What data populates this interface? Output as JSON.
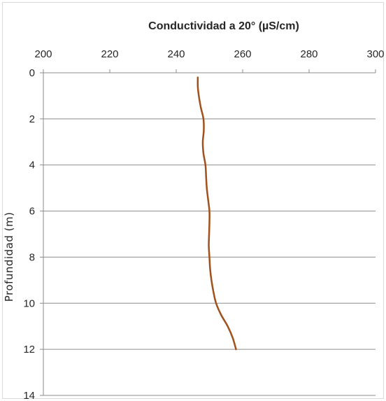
{
  "chart_data": {
    "type": "line",
    "title": "Conductividad a 20° (µS/cm)",
    "xlabel": "Conductividad a 20° (µS/cm)",
    "ylabel": "Profundidad (m)",
    "x_axis_position": "top",
    "y_axis_inverted": true,
    "xlim": [
      200,
      300
    ],
    "ylim": [
      0,
      14
    ],
    "x_ticks": [
      200,
      220,
      240,
      260,
      280,
      300
    ],
    "y_ticks": [
      0,
      2,
      4,
      6,
      8,
      10,
      12,
      14
    ],
    "grid": "horizontal",
    "legend": "none",
    "series": [
      {
        "color": "#a0521d",
        "points": [
          {
            "x": 246.5,
            "y": 0.2
          },
          {
            "x": 246.5,
            "y": 0.6
          },
          {
            "x": 246.8,
            "y": 1.0
          },
          {
            "x": 247.4,
            "y": 1.5
          },
          {
            "x": 248.2,
            "y": 2.0
          },
          {
            "x": 248.3,
            "y": 2.5
          },
          {
            "x": 248.0,
            "y": 3.0
          },
          {
            "x": 248.2,
            "y": 3.5
          },
          {
            "x": 248.8,
            "y": 4.0
          },
          {
            "x": 249.0,
            "y": 4.5
          },
          {
            "x": 249.2,
            "y": 5.0
          },
          {
            "x": 249.6,
            "y": 5.5
          },
          {
            "x": 250.0,
            "y": 6.0
          },
          {
            "x": 250.0,
            "y": 6.5
          },
          {
            "x": 249.9,
            "y": 7.0
          },
          {
            "x": 249.8,
            "y": 7.5
          },
          {
            "x": 250.0,
            "y": 8.0
          },
          {
            "x": 250.2,
            "y": 8.5
          },
          {
            "x": 250.6,
            "y": 9.0
          },
          {
            "x": 251.2,
            "y": 9.5
          },
          {
            "x": 252.0,
            "y": 10.0
          },
          {
            "x": 253.5,
            "y": 10.5
          },
          {
            "x": 255.5,
            "y": 11.0
          },
          {
            "x": 257.0,
            "y": 11.5
          },
          {
            "x": 258.0,
            "y": 12.0
          }
        ]
      }
    ],
    "colors": {
      "series": "#a0521d",
      "grid": "#8c8c8c",
      "axis": "#8c8c8c",
      "text": "#262626"
    }
  }
}
